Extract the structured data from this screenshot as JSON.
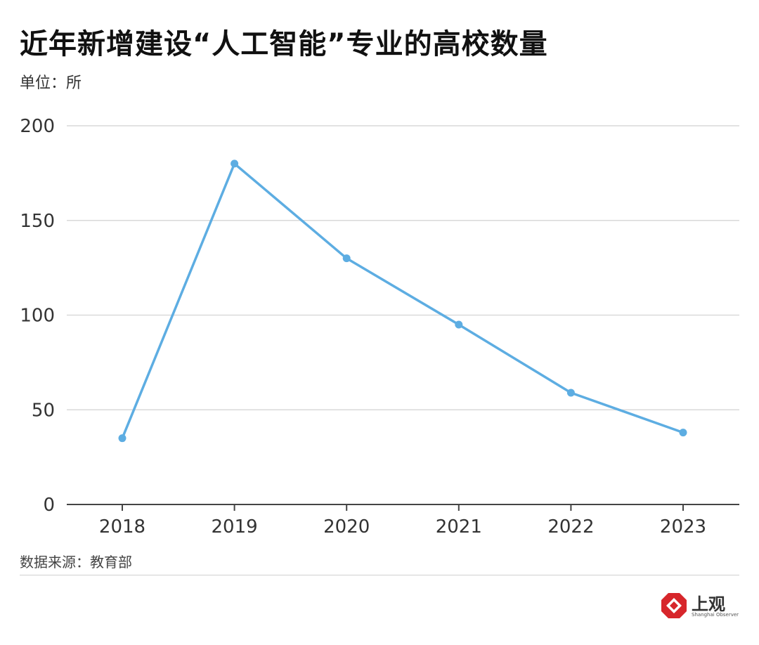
{
  "title": "近年新增建设“人工智能”专业的高校数量",
  "unit": "单位：所",
  "source": "数据来源：教育部",
  "logo": {
    "text_cn": "上观",
    "text_en": "Shanghai Observer",
    "icon": "shanghai-observer-logo-icon",
    "color": "#d7262b"
  },
  "colors": {
    "line": "#5dade2",
    "grid": "#d9d9d9",
    "axis": "#444444"
  },
  "chart_data": {
    "type": "line",
    "title": "近年新增建设“人工智能”专业的高校数量",
    "ylabel": "单位：所",
    "xlabel": "",
    "categories": [
      "2018",
      "2019",
      "2020",
      "2021",
      "2022",
      "2023"
    ],
    "series": [
      {
        "values": [
          35,
          180,
          130,
          95,
          59,
          38
        ]
      }
    ],
    "ylim": [
      0,
      200
    ],
    "yticks": [
      0,
      50,
      100,
      150,
      200
    ],
    "grid": true,
    "legend": "none"
  }
}
